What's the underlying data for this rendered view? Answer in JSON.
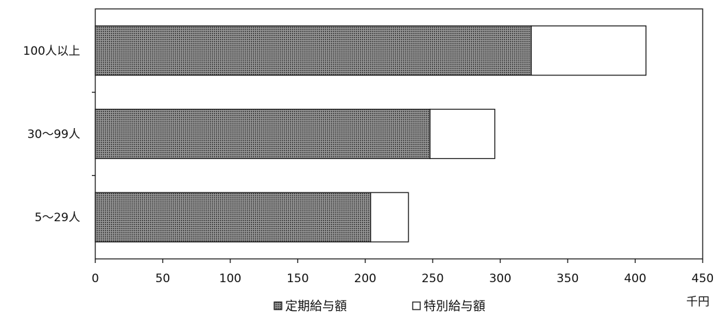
{
  "chart_data": {
    "type": "bar",
    "orientation": "horizontal",
    "stacked": true,
    "categories": [
      "100人以上",
      "30～99人",
      "5～29人"
    ],
    "series": [
      {
        "name": "定期給与額",
        "values": [
          323,
          248,
          204
        ],
        "color": "#6e6e6e",
        "pattern": "dotted-fill"
      },
      {
        "name": "特別給与額",
        "values": [
          85,
          48,
          28
        ],
        "color": "#ffffff"
      }
    ],
    "x_ticks": [
      "0",
      "50",
      "100",
      "150",
      "200",
      "250",
      "300",
      "350",
      "400",
      "450"
    ],
    "xlim": [
      0,
      450
    ],
    "unit_label": "千円",
    "grid": false,
    "legend_position": "bottom"
  }
}
